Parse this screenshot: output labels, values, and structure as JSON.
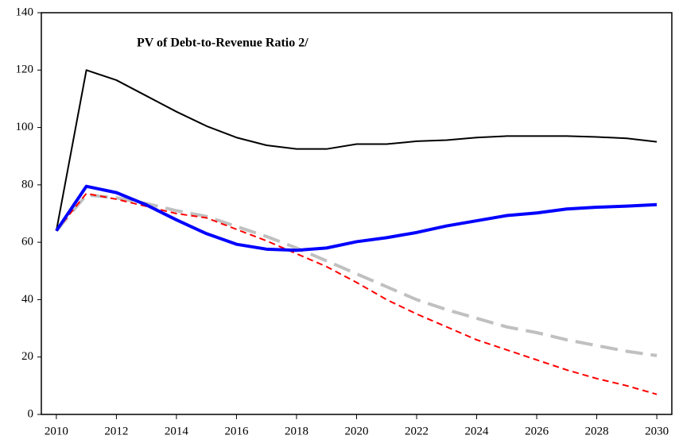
{
  "chart_data": {
    "type": "line",
    "title": "PV of Debt-to-Revenue  Ratio 2/",
    "x": [
      2010,
      2011,
      2012,
      2013,
      2014,
      2015,
      2016,
      2017,
      2018,
      2019,
      2020,
      2021,
      2022,
      2023,
      2024,
      2025,
      2026,
      2027,
      2028,
      2029,
      2030
    ],
    "series": [
      {
        "color": "#000000",
        "width": 2,
        "dash": "solid",
        "values": [
          64,
          120,
          116.5,
          111,
          105.5,
          100.5,
          96.5,
          93.8,
          92.5,
          92.5,
          94.2,
          94.2,
          95.2,
          95.6,
          96.5,
          97,
          97,
          97,
          96.7,
          96.2,
          95
        ]
      },
      {
        "color": "#0000ff",
        "width": 4,
        "dash": "solid",
        "values": [
          64,
          79.5,
          77.3,
          73,
          67.8,
          63,
          59.3,
          57.6,
          57.2,
          58,
          60.2,
          61.6,
          63.4,
          65.7,
          67.5,
          69.3,
          70.2,
          71.6,
          72.2,
          72.6,
          73.1
        ]
      },
      {
        "color": "#ff0000",
        "width": 2,
        "dash": "dashed",
        "values": [
          64,
          77,
          75,
          72.5,
          70,
          68.5,
          64.5,
          60.5,
          56,
          51.5,
          46,
          40,
          35,
          30.5,
          26,
          22.5,
          19,
          15.5,
          12.5,
          10,
          7
        ]
      },
      {
        "color": "#c0c0c0",
        "width": 4,
        "dash": "longdash",
        "values": [
          64,
          76.5,
          75.5,
          73.5,
          71,
          69,
          65.5,
          62,
          58,
          53.5,
          49,
          44.5,
          40,
          36.5,
          33.5,
          30.5,
          28.5,
          26,
          24,
          22,
          20.5
        ]
      }
    ],
    "xlim": [
      2009.5,
      2030.5
    ],
    "xticks": [
      2010,
      2012,
      2014,
      2016,
      2018,
      2020,
      2022,
      2024,
      2026,
      2028,
      2030
    ],
    "ylim": [
      0,
      140
    ],
    "yticks": [
      0,
      20,
      40,
      60,
      80,
      100,
      120,
      140
    ],
    "grid": false
  }
}
